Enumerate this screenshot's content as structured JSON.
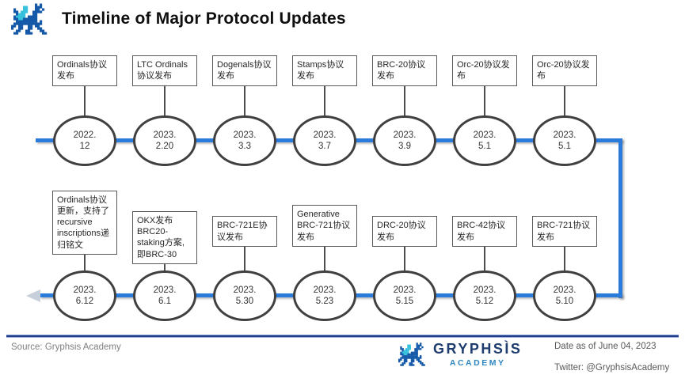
{
  "header": {
    "title": "Timeline of Major Protocol Updates"
  },
  "timeline": {
    "top_row": {
      "direction": "left-to-right",
      "nodes": [
        {
          "label": "Ordinals协议发布",
          "date_year": "2022.",
          "date_md": "12"
        },
        {
          "label": "LTC Ordinals协议发布",
          "date_year": "2023.",
          "date_md": "2.20"
        },
        {
          "label": "Dogenals协议发布",
          "date_year": "2023.",
          "date_md": "3.3"
        },
        {
          "label": "Stamps协议发布",
          "date_year": "2023.",
          "date_md": "3.7"
        },
        {
          "label": "BRC-20协议发布",
          "date_year": "2023.",
          "date_md": "3.9"
        },
        {
          "label": "Orc-20协议发布",
          "date_year": "2023.",
          "date_md": "5.1"
        },
        {
          "label": "Orc-20协议发布",
          "date_year": "2023.",
          "date_md": "5.1"
        }
      ]
    },
    "bottom_row": {
      "direction": "right-to-left",
      "nodes": [
        {
          "label": "Ordinals协议更新，支持了recursive inscriptions递归铭文",
          "date_year": "2023.",
          "date_md": "6.12"
        },
        {
          "label": "OKX发布BRC20-staking方案,即BRC-30",
          "date_year": "2023.",
          "date_md": "6.1"
        },
        {
          "label": "BRC-721E协议发布",
          "date_year": "2023.",
          "date_md": "5.30"
        },
        {
          "label": "Generative BRC-721协议发布",
          "date_year": "2023.",
          "date_md": "5.23"
        },
        {
          "label": "DRC-20协议发布",
          "date_year": "2023.",
          "date_md": "5.15"
        },
        {
          "label": "BRC-42协议发布",
          "date_year": "2023.",
          "date_md": "5.12"
        },
        {
          "label": "BRC-721协议发布",
          "date_year": "2023.",
          "date_md": "5.10"
        }
      ]
    }
  },
  "footer": {
    "source": "Source: Gryphsis Academy",
    "logo_name": "GRYPHSÌS",
    "logo_sub": "ACADEMY",
    "date_note": "Date as of June 04, 2023",
    "twitter": "Twitter: @GryphsisAcademy"
  },
  "colors": {
    "timeline_blue": "#2b7bdb",
    "divider_navy": "#1f3d85",
    "logo_navy": "#1e3c6e",
    "logo_blue": "#2e86c1",
    "dragon_blue": "#1559a9",
    "dragon_cyan": "#38c1dd",
    "circle_border": "#404040",
    "box_border": "#595959"
  }
}
